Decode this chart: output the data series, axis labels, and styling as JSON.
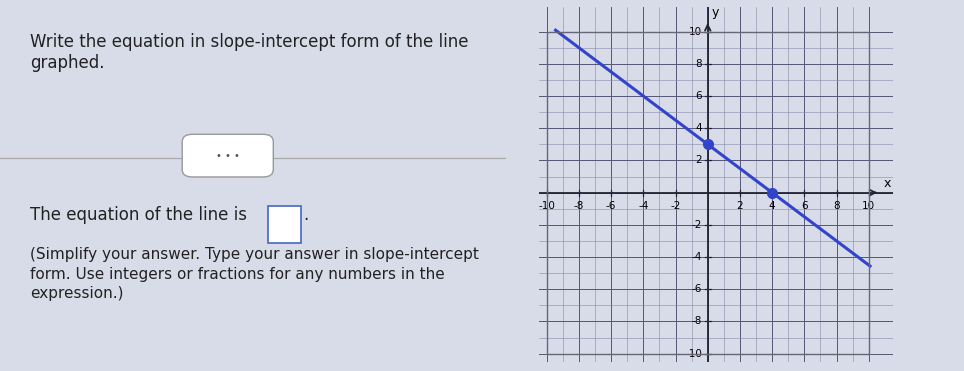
{
  "title_text": "Write the equation in slope-intercept form of the line\ngraphed.",
  "question_text": "The equation of the line is",
  "subtext": "(Simplify your answer. Type your answer in slope-intercept\nform. Use integers or fractions for any numbers in the\nexpression.)",
  "slope": -0.75,
  "y_intercept": 3,
  "x_range": [
    -10,
    10
  ],
  "y_range": [
    -10,
    10
  ],
  "line_color": "#3344cc",
  "dot_color": "#3344cc",
  "dot_points": [
    [
      0,
      3
    ],
    [
      4,
      0
    ]
  ],
  "grid_color": "#8888aa",
  "grid_major_color": "#555577",
  "axis_color": "#222233",
  "bg_color": "#d8dce8",
  "panel_bg": "#e8eaf0",
  "graph_bg": "#ffffff",
  "tick_label_size": 7.5,
  "separator_color": "#aaaaaa",
  "ellipsis_border": "#999999",
  "box_border": "#4466cc",
  "text_color": "#222222",
  "subtext_color": "#222222"
}
